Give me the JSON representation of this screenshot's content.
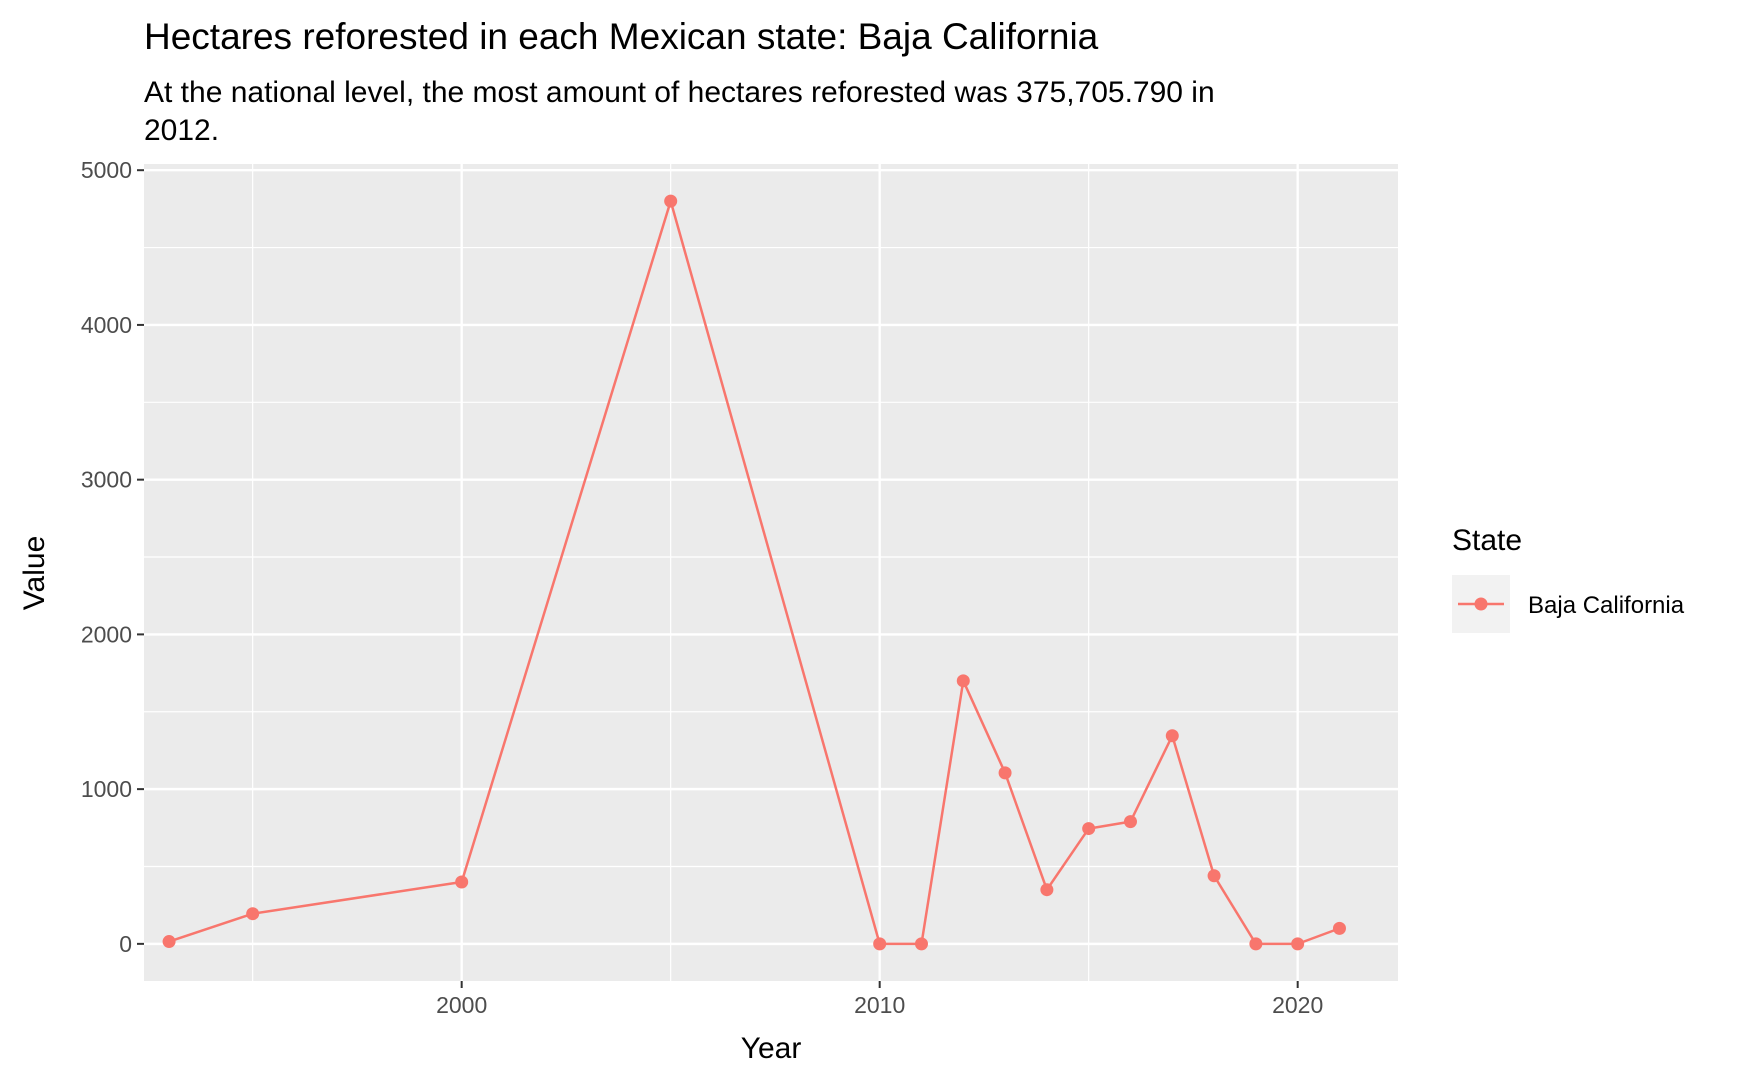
{
  "chart_data": {
    "type": "line",
    "title": "Hectares reforested in each Mexican state: Baja California",
    "subtitle_lines": [
      "At the national level, the most amount of hectares reforested was 375,705.790 in",
      "2012."
    ],
    "xlabel": "Year",
    "ylabel": "Value",
    "xlim": [
      1992.4,
      2022.4
    ],
    "ylim": [
      -240,
      5040
    ],
    "x_ticks": [
      2000,
      2010,
      2020
    ],
    "x_tick_labels": [
      "2000",
      "2010",
      "2020"
    ],
    "x_minor_ticks": [
      1995,
      2005,
      2015
    ],
    "y_ticks": [
      0,
      1000,
      2000,
      3000,
      4000,
      5000
    ],
    "y_tick_labels": [
      "0",
      "1000",
      "2000",
      "3000",
      "4000",
      "5000"
    ],
    "y_minor_ticks": [
      500,
      1500,
      2500,
      3500,
      4500
    ],
    "grid": true,
    "legend": {
      "title": "State",
      "placement": "right"
    },
    "series": [
      {
        "name": "Baja California",
        "color": "#F8766D",
        "x": [
          1993,
          1995,
          2000,
          2005,
          2010,
          2011,
          2012,
          2013,
          2014,
          2015,
          2016,
          2017,
          2018,
          2019,
          2020,
          2021
        ],
        "y": [
          15,
          195,
          400,
          4800,
          0,
          0,
          1700,
          1105,
          350,
          745,
          790,
          1345,
          440,
          0,
          0,
          100
        ]
      }
    ]
  }
}
